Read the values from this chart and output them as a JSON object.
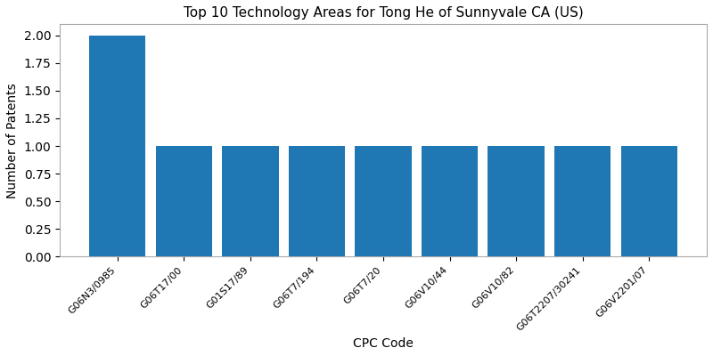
{
  "title": "Top 10 Technology Areas for Tong He of Sunnyvale CA (US)",
  "xlabel": "CPC Code",
  "ylabel": "Number of Patents",
  "categories": [
    "G06N3/0985",
    "G06T17/00",
    "G01S17/89",
    "G06T7/194",
    "G06T7/20",
    "G06V10/44",
    "G06V10/82",
    "G06T2207/30241",
    "G06V2201/07"
  ],
  "values": [
    2,
    1,
    1,
    1,
    1,
    1,
    1,
    1,
    1
  ],
  "bar_color": "#1f77b4",
  "ylim": [
    0,
    2.1
  ],
  "yticks": [
    0.0,
    0.25,
    0.5,
    0.75,
    1.0,
    1.25,
    1.5,
    1.75,
    2.0
  ],
  "figsize": [
    8.0,
    4.0
  ],
  "dpi": 100,
  "bar_width": 0.85,
  "title_fontsize": 11,
  "label_fontsize": 10,
  "tick_fontsize": 8,
  "spine_color": "#aaaaaa"
}
